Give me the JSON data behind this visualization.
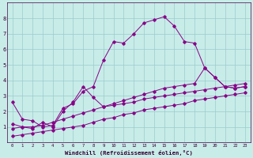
{
  "xlabel": "Windchill (Refroidissement éolien,°C)",
  "background_color": "#c8ece8",
  "line_color": "#880088",
  "grid_color": "#99cccc",
  "xlim": [
    -0.5,
    23.5
  ],
  "ylim": [
    0,
    9
  ],
  "xticks": [
    0,
    1,
    2,
    3,
    4,
    5,
    6,
    7,
    8,
    9,
    10,
    11,
    12,
    13,
    14,
    15,
    16,
    17,
    18,
    19,
    20,
    21,
    22,
    23
  ],
  "yticks": [
    1,
    2,
    3,
    4,
    5,
    6,
    7,
    8
  ],
  "series1_x": [
    0,
    1,
    2,
    3,
    4,
    5,
    6,
    7,
    8,
    9,
    10,
    11,
    12,
    13,
    14,
    15,
    16,
    17,
    18,
    19,
    20,
    21,
    22,
    23
  ],
  "series1_y": [
    2.6,
    1.5,
    1.4,
    1.0,
    1.1,
    2.2,
    2.5,
    3.3,
    3.6,
    5.3,
    6.5,
    6.4,
    7.0,
    7.7,
    7.9,
    8.1,
    7.5,
    6.5,
    6.4,
    4.8,
    4.2,
    3.6,
    3.5,
    3.6
  ],
  "series2_x": [
    0,
    1,
    2,
    3,
    4,
    5,
    6,
    7,
    8,
    9,
    10,
    11,
    12,
    13,
    14,
    15,
    16,
    17,
    18,
    19,
    20,
    21,
    22,
    23
  ],
  "series2_y": [
    1.2,
    1.0,
    0.9,
    1.3,
    1.0,
    2.0,
    2.6,
    3.6,
    2.9,
    2.3,
    2.5,
    2.7,
    2.9,
    3.1,
    3.3,
    3.5,
    3.6,
    3.7,
    3.8,
    4.8,
    4.2,
    3.6,
    3.5,
    3.6
  ],
  "series3_x": [
    0,
    1,
    2,
    3,
    4,
    5,
    6,
    7,
    8,
    9,
    10,
    11,
    12,
    13,
    14,
    15,
    16,
    17,
    18,
    19,
    20,
    21,
    22,
    23
  ],
  "series3_y": [
    0.9,
    1.0,
    1.0,
    1.1,
    1.3,
    1.5,
    1.7,
    1.9,
    2.1,
    2.3,
    2.4,
    2.5,
    2.6,
    2.8,
    2.9,
    3.0,
    3.1,
    3.2,
    3.3,
    3.4,
    3.5,
    3.6,
    3.7,
    3.8
  ],
  "series4_x": [
    0,
    1,
    2,
    3,
    4,
    5,
    6,
    7,
    8,
    9,
    10,
    11,
    12,
    13,
    14,
    15,
    16,
    17,
    18,
    19,
    20,
    21,
    22,
    23
  ],
  "series4_y": [
    0.4,
    0.5,
    0.6,
    0.7,
    0.8,
    0.9,
    1.0,
    1.1,
    1.3,
    1.5,
    1.6,
    1.8,
    1.9,
    2.1,
    2.2,
    2.3,
    2.4,
    2.5,
    2.7,
    2.8,
    2.9,
    3.0,
    3.1,
    3.2
  ]
}
